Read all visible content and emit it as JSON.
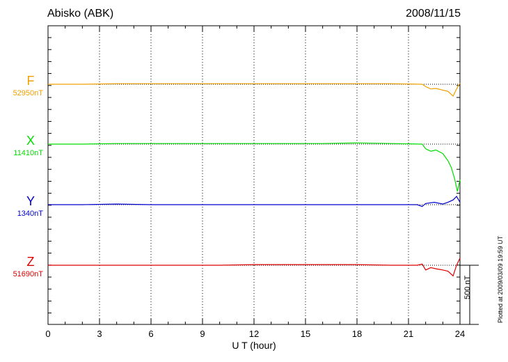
{
  "title": {
    "station": "Abisko (ABK)",
    "date": "2008/11/15"
  },
  "footer": {
    "plotted": "Plotted at 2009/03/09 19:59 UT",
    "scale_label": "500 nT"
  },
  "colors": {
    "F": "#f0a000",
    "X": "#00dd00",
    "Y": "#0000cc",
    "Z": "#dd0000",
    "axis": "#000000"
  },
  "chart_data": {
    "type": "line",
    "xlabel": "U T (hour)",
    "xlim": [
      0,
      24
    ],
    "xticks": [
      "0",
      "3",
      "6",
      "9",
      "12",
      "15",
      "18",
      "21",
      "24"
    ],
    "scale_nT": 500,
    "grid": "vertical dotted lines every 3 hours, dotted baselines",
    "series": [
      {
        "name": "F",
        "baseline_label": "52950nT",
        "color": "#f0a000",
        "x": [
          0,
          2,
          4,
          6,
          8,
          10,
          12,
          14,
          16,
          18,
          20,
          21.8,
          22.0,
          22.3,
          22.6,
          23.0,
          23.3,
          23.6,
          23.8,
          24.0
        ],
        "y": [
          0,
          0,
          5,
          5,
          5,
          5,
          5,
          5,
          5,
          5,
          5,
          0,
          -20,
          -40,
          -35,
          -50,
          -60,
          -100,
          -40,
          10
        ]
      },
      {
        "name": "X",
        "baseline_label": "11410nT",
        "color": "#00dd00",
        "x": [
          0,
          2,
          4,
          6,
          8,
          10,
          12,
          14,
          16,
          18,
          20,
          21.8,
          22.0,
          22.3,
          22.6,
          23.0,
          23.3,
          23.5,
          23.7,
          23.85,
          24.0
        ],
        "y": [
          0,
          0,
          5,
          5,
          5,
          5,
          5,
          5,
          5,
          10,
          5,
          0,
          -40,
          -60,
          -50,
          -80,
          -140,
          -200,
          -300,
          -400,
          -300
        ]
      },
      {
        "name": "Y",
        "baseline_label": "1340nT",
        "color": "#0000cc",
        "x": [
          0,
          2,
          4,
          6,
          8,
          10,
          12,
          14,
          16,
          18,
          20,
          21.5,
          21.8,
          22.0,
          22.5,
          23.0,
          23.3,
          23.6,
          23.8,
          24.0
        ],
        "y": [
          0,
          0,
          5,
          0,
          0,
          0,
          0,
          0,
          0,
          0,
          0,
          0,
          -15,
          10,
          20,
          5,
          20,
          40,
          70,
          20
        ]
      },
      {
        "name": "Z",
        "baseline_label": "51690nT",
        "color": "#dd0000",
        "x": [
          0,
          2,
          4,
          6,
          8,
          10,
          12,
          14,
          16,
          18,
          20,
          21.5,
          21.8,
          22.0,
          22.3,
          22.6,
          23.0,
          23.3,
          23.6,
          23.8,
          24.0
        ],
        "y": [
          0,
          0,
          0,
          0,
          0,
          0,
          5,
          5,
          5,
          5,
          0,
          0,
          10,
          -40,
          -20,
          -30,
          -40,
          -50,
          -90,
          0,
          60
        ]
      }
    ]
  }
}
